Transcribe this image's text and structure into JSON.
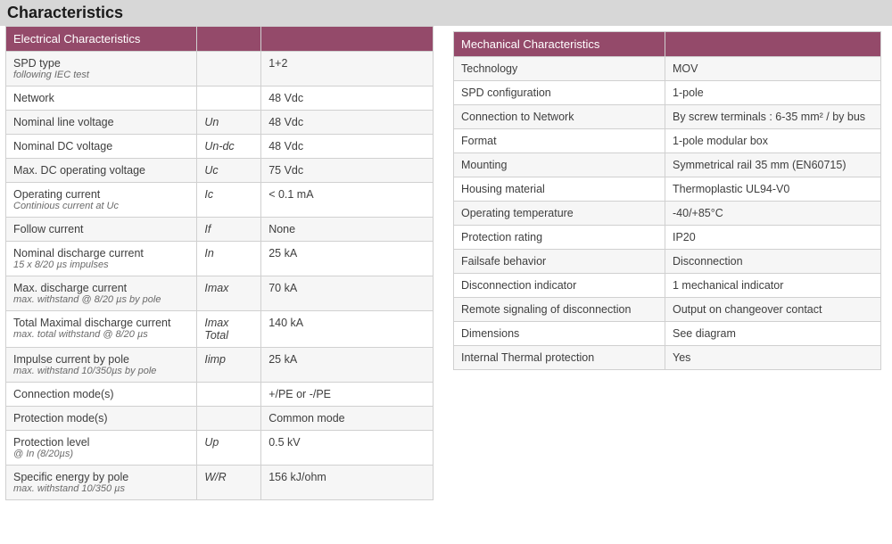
{
  "title": "Characteristics",
  "colors": {
    "header_bg": "#944a6a",
    "header_text": "#ffffff",
    "title_bg": "#d7d7d7",
    "row_alt_bg": "#f6f6f6",
    "border": "#d0d0d0",
    "text": "#3a3a3a",
    "subtext": "#6a6a6a"
  },
  "typography": {
    "title_fontsize_pt": 14,
    "header_fontsize_pt": 10,
    "body_fontsize_pt": 9.5,
    "sub_fontsize_pt": 8
  },
  "electrical": {
    "heading": "Electrical Characteristics",
    "columns": [
      "label",
      "symbol",
      "value"
    ],
    "rows": [
      {
        "label": "SPD type",
        "sub": "following IEC test",
        "symbol": "",
        "value": "1+2"
      },
      {
        "label": "Network",
        "sub": "",
        "symbol": "",
        "value": "48 Vdc"
      },
      {
        "label": "Nominal line voltage",
        "sub": "",
        "symbol": "Un",
        "value": "48 Vdc"
      },
      {
        "label": "Nominal DC voltage",
        "sub": "",
        "symbol": "Un-dc",
        "value": "48 Vdc"
      },
      {
        "label": "Max. DC  operating voltage",
        "sub": "",
        "symbol": "Uc",
        "value": "75 Vdc"
      },
      {
        "label": "Operating current",
        "sub": "Continious current at Uc",
        "symbol": "Ic",
        "value": "< 0.1 mA"
      },
      {
        "label": "Follow current",
        "sub": "",
        "symbol": "If",
        "value": "None"
      },
      {
        "label": "Nominal discharge current",
        "sub": "15 x 8/20 µs impulses",
        "symbol": "In",
        "value": "25 kA"
      },
      {
        "label": "Max. discharge current",
        "sub": "max. withstand @ 8/20 µs by pole",
        "symbol": "Imax",
        "value": "70 kA"
      },
      {
        "label": "Total Maximal discharge current",
        "sub": "max. total withstand @ 8/20 µs",
        "symbol": "Imax Total",
        "value": "140 kA"
      },
      {
        "label": "Impulse current by pole",
        "sub": "max. withstand 10/350µs by pole",
        "symbol": "Iimp",
        "value": "25 kA"
      },
      {
        "label": "Connection mode(s)",
        "sub": "",
        "symbol": "",
        "value": "+/PE or -/PE"
      },
      {
        "label": "Protection mode(s)",
        "sub": "",
        "symbol": "",
        "value": "Common mode"
      },
      {
        "label": "Protection level",
        "sub": "@ In (8/20µs)",
        "symbol": "Up",
        "value": "0.5 kV"
      },
      {
        "label": "Specific energy by pole",
        "sub": "max. withstand 10/350 µs",
        "symbol": "W/R",
        "value": "156 kJ/ohm"
      }
    ]
  },
  "mechanical": {
    "heading": "Mechanical Characteristics",
    "columns": [
      "label",
      "value"
    ],
    "rows": [
      {
        "label": "Technology",
        "value": "MOV"
      },
      {
        "label": "SPD configuration",
        "value": "1-pole"
      },
      {
        "label": "Connection to Network",
        "value": "By screw terminals : 6-35 mm² / by bus"
      },
      {
        "label": "Format",
        "value": "1-pole modular box"
      },
      {
        "label": "Mounting",
        "value": "Symmetrical rail 35 mm (EN60715)"
      },
      {
        "label": "Housing material",
        "value": "Thermoplastic UL94-V0"
      },
      {
        "label": "Operating temperature",
        "value": "-40/+85°C"
      },
      {
        "label": "Protection rating",
        "value": "IP20"
      },
      {
        "label": "Failsafe behavior",
        "value": "Disconnection"
      },
      {
        "label": "Disconnection indicator",
        "value": "1 mechanical indicator"
      },
      {
        "label": "Remote signaling of disconnection",
        "value": "Output on changeover contact"
      },
      {
        "label": "Dimensions",
        "value": "See diagram"
      },
      {
        "label": "Internal Thermal protection",
        "value": "Yes"
      }
    ]
  }
}
